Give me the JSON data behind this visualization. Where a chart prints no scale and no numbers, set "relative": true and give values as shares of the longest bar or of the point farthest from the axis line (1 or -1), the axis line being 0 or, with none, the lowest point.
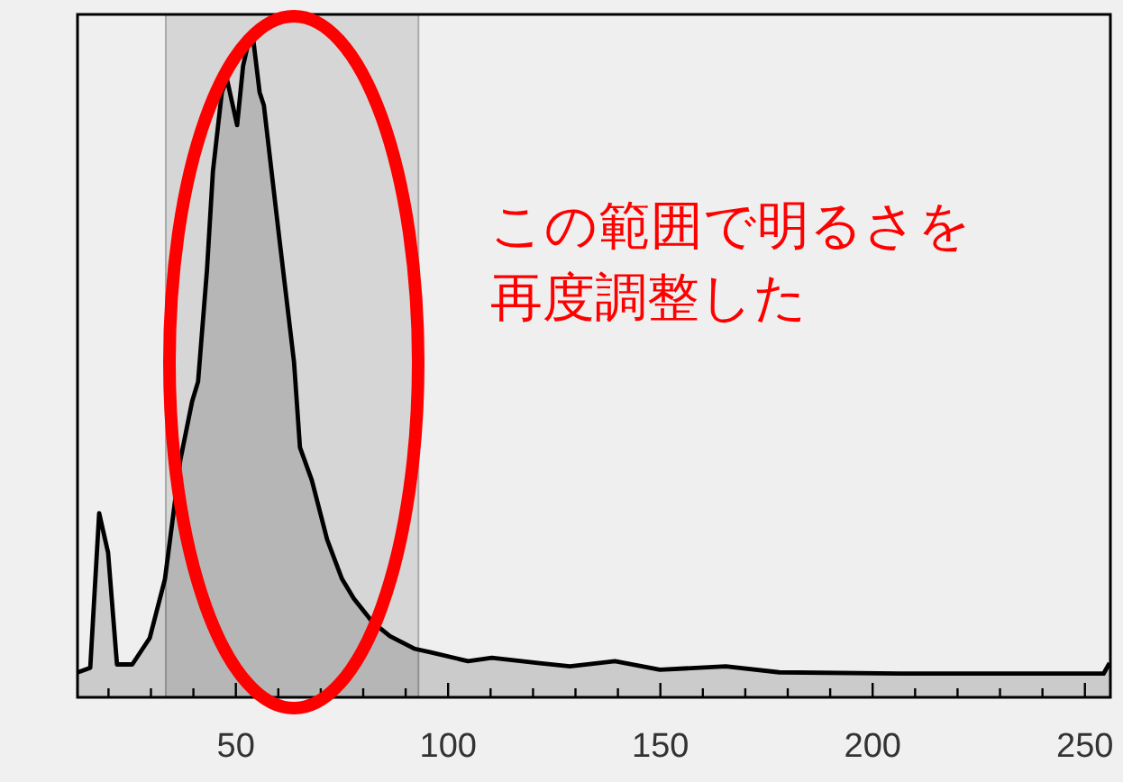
{
  "chart_data": {
    "type": "area",
    "relative": true,
    "x": [
      12.8,
      15.7,
      17.8,
      19.9,
      22,
      25.6,
      29.7,
      33.3,
      36.9,
      39.7,
      41.1,
      43.2,
      44.6,
      46.7,
      47.9,
      50.3,
      51.7,
      53.1,
      54.1,
      55.6,
      56.6,
      60.2,
      63.7,
      65.1,
      67.9,
      71.5,
      75,
      77.8,
      82.1,
      86.3,
      92,
      96.2,
      104.7,
      110.3,
      121.6,
      128.7,
      139.3,
      149.9,
      165.4,
      178,
      206.4,
      254.4,
      255.8
    ],
    "series": [
      {
        "color": "#000000",
        "values": [
          0.038,
          0.045,
          0.28,
          0.22,
          0.05,
          0.05,
          0.09,
          0.18,
          0.36,
          0.45,
          0.48,
          0.65,
          0.8,
          0.92,
          0.94,
          0.87,
          0.96,
          1.0,
          1.0,
          0.92,
          0.9,
          0.7,
          0.51,
          0.38,
          0.33,
          0.24,
          0.18,
          0.15,
          0.115,
          0.093,
          0.074,
          0.068,
          0.055,
          0.06,
          0.052,
          0.047,
          0.055,
          0.042,
          0.047,
          0.038,
          0.036,
          0.036,
          0.052
        ]
      }
    ],
    "xlim": [
      12.7,
      256
    ],
    "xticks": [
      {
        "value": 20,
        "label": null
      },
      {
        "value": 30,
        "label": null
      },
      {
        "value": 40,
        "label": null
      },
      50,
      {
        "value": 60,
        "label": null
      },
      {
        "value": 70,
        "label": null
      },
      {
        "value": 80,
        "label": null
      },
      {
        "value": 90,
        "label": null
      },
      100,
      {
        "value": 110,
        "label": null
      },
      {
        "value": 120,
        "label": null
      },
      {
        "value": 130,
        "label": null
      },
      {
        "value": 140,
        "label": null
      },
      150,
      {
        "value": 160,
        "label": null
      },
      {
        "value": 170,
        "label": null
      },
      {
        "value": 180,
        "label": null
      },
      {
        "value": 190,
        "label": null
      },
      200,
      {
        "value": 210,
        "label": null
      },
      {
        "value": 220,
        "label": null
      },
      {
        "value": 230,
        "label": null
      },
      {
        "value": 240,
        "label": null
      },
      250
    ],
    "bands": [
      {
        "axis": "x",
        "from": 33.5,
        "to": 93,
        "color": "#d6d6d6"
      }
    ],
    "tick_labels": "x",
    "annotations": [
      "この範囲で明るさを",
      "再度調整した"
    ]
  }
}
